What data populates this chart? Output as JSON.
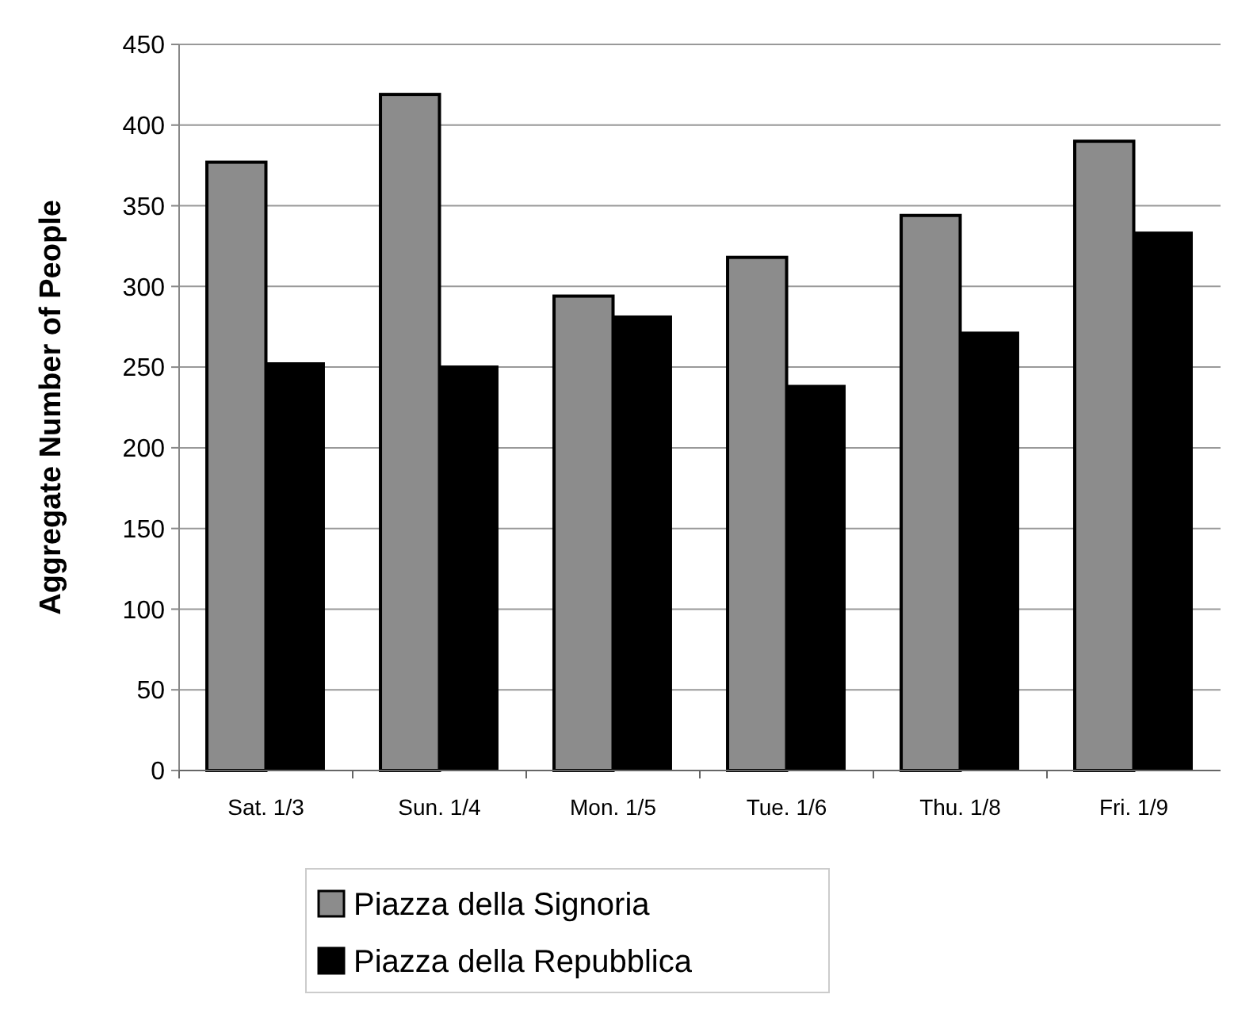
{
  "chart_data": {
    "type": "bar",
    "ylabel": "Aggregate Number of People",
    "categories": [
      "Sat. 1/3",
      "Sun. 1/4",
      "Mon. 1/5",
      "Tue. 1/6",
      "Thu. 1/8",
      "Fri. 1/9"
    ],
    "series": [
      {
        "name": "Piazza della Signoria",
        "color": "#8c8c8c",
        "values": [
          377,
          419,
          294,
          318,
          344,
          390
        ]
      },
      {
        "name": "Piazza della Repubblica",
        "color": "#000000",
        "values": [
          253,
          251,
          282,
          239,
          272,
          334
        ]
      }
    ],
    "ylim": [
      0,
      450
    ],
    "yticks": [
      0,
      50,
      100,
      150,
      200,
      250,
      300,
      350,
      400,
      450
    ],
    "grid": "y",
    "legend": "bottom"
  }
}
